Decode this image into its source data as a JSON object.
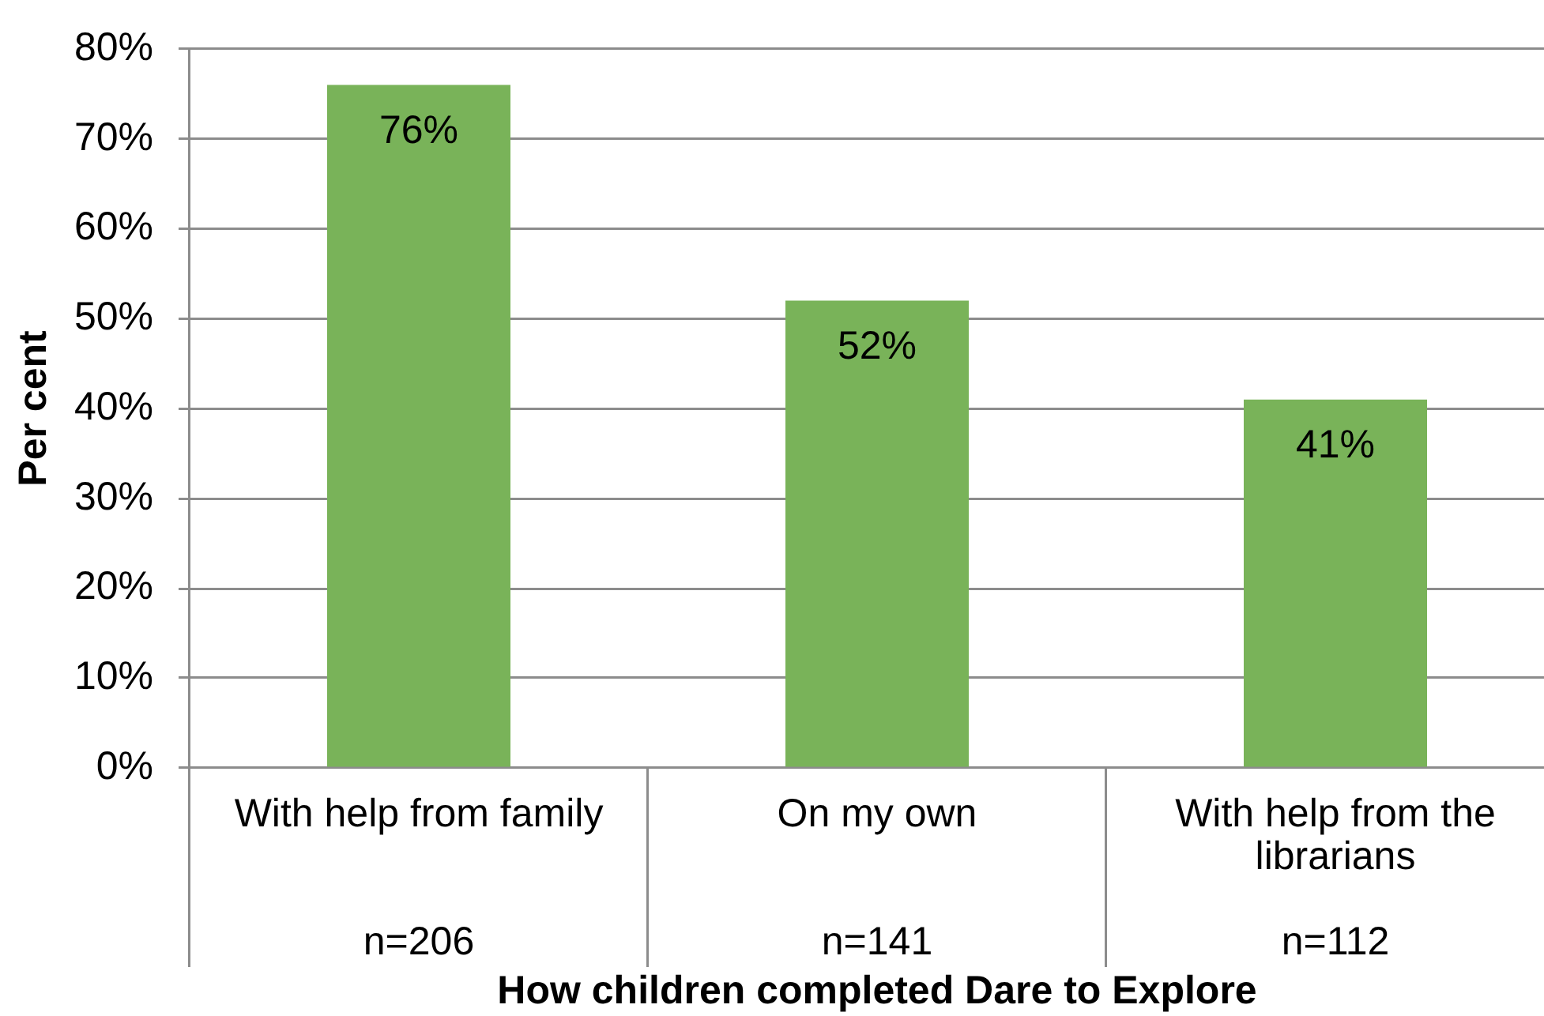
{
  "chart_data": {
    "type": "bar",
    "xlabel": "How children completed Dare to Explore",
    "ylabel": "Per cent",
    "categories": [
      "With help from family\nn=206",
      "On my own\nn=141",
      "With help from the librarians\nn=112"
    ],
    "values": [
      76,
      52,
      41
    ],
    "color": "#79b359",
    "value_labels": [
      "76%",
      "52%",
      "41%"
    ],
    "ylim": [
      0,
      80
    ],
    "yticks": [
      {
        "value": 0,
        "label": "0%"
      },
      {
        "value": 10,
        "label": "10%"
      },
      {
        "value": 20,
        "label": "20%"
      },
      {
        "value": 30,
        "label": "30%"
      },
      {
        "value": 40,
        "label": "40%"
      },
      {
        "value": 50,
        "label": "50%"
      },
      {
        "value": 60,
        "label": "60%"
      },
      {
        "value": 70,
        "label": "70%"
      },
      {
        "value": 80,
        "label": "80%"
      }
    ],
    "grid": "y",
    "legend": false
  }
}
